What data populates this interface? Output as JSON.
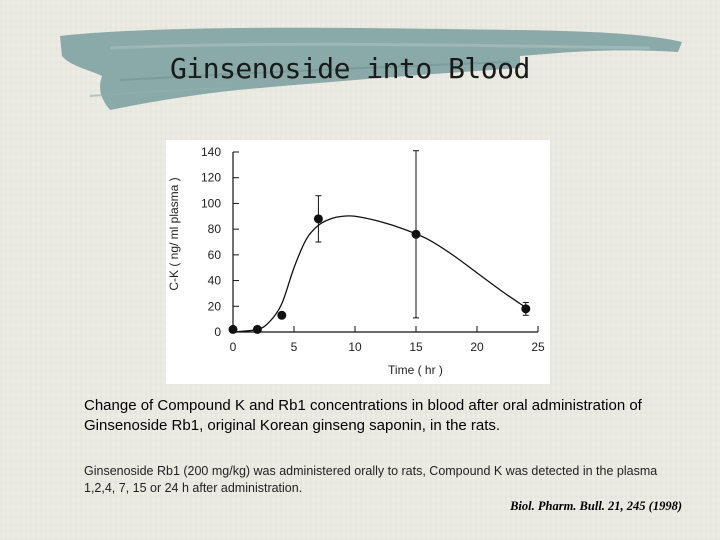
{
  "slide": {
    "title": "Ginsenoside into Blood",
    "caption_main": "Change of Compound K and Rb1 concentrations in blood after oral administration of Ginsenoside Rb1, original Korean ginseng saponin, in the rats.",
    "caption_detail": "Ginsenoside Rb1 (200 mg/kg) was administered orally to rats, Compound K was detected in the plasma 1,2,4, 7, 15 or 24 h after administration.",
    "citation": "Biol. Pharm. Bull. 21, 245 (1998)"
  },
  "colors": {
    "background": "#ecebe3",
    "title_brush": "#7fa3a3",
    "data": "#111111"
  },
  "chart_data": {
    "type": "line",
    "xlabel": "Time  ( hr )",
    "ylabel": "C-K  ( ng/ ml plasma )",
    "xlim": [
      0,
      25
    ],
    "ylim": [
      0,
      140
    ],
    "x_ticks": [
      "0",
      "5",
      "10",
      "15",
      "20",
      "25"
    ],
    "y_ticks": [
      "0",
      "20",
      "40",
      "60",
      "80",
      "100",
      "120",
      "140"
    ],
    "grid": false,
    "series": [
      {
        "points": [
          {
            "x": 0,
            "y": 2
          },
          {
            "x": 2,
            "y": 2
          },
          {
            "x": 4,
            "y": 13
          },
          {
            "x": 7,
            "y": 88,
            "error": 18
          },
          {
            "x": 15,
            "y": 76,
            "error": 65
          },
          {
            "x": 24,
            "y": 18,
            "error": 5
          }
        ]
      }
    ],
    "fitted_curve": [
      {
        "x": 0,
        "y": 0
      },
      {
        "x": 2,
        "y": 2
      },
      {
        "x": 3,
        "y": 8
      },
      {
        "x": 4,
        "y": 22
      },
      {
        "x": 5,
        "y": 50
      },
      {
        "x": 6,
        "y": 72
      },
      {
        "x": 7,
        "y": 83
      },
      {
        "x": 8,
        "y": 88
      },
      {
        "x": 9,
        "y": 90
      },
      {
        "x": 10,
        "y": 90
      },
      {
        "x": 12,
        "y": 86
      },
      {
        "x": 14,
        "y": 80
      },
      {
        "x": 16,
        "y": 72
      },
      {
        "x": 18,
        "y": 60
      },
      {
        "x": 20,
        "y": 46
      },
      {
        "x": 22,
        "y": 32
      },
      {
        "x": 24,
        "y": 19
      }
    ]
  }
}
